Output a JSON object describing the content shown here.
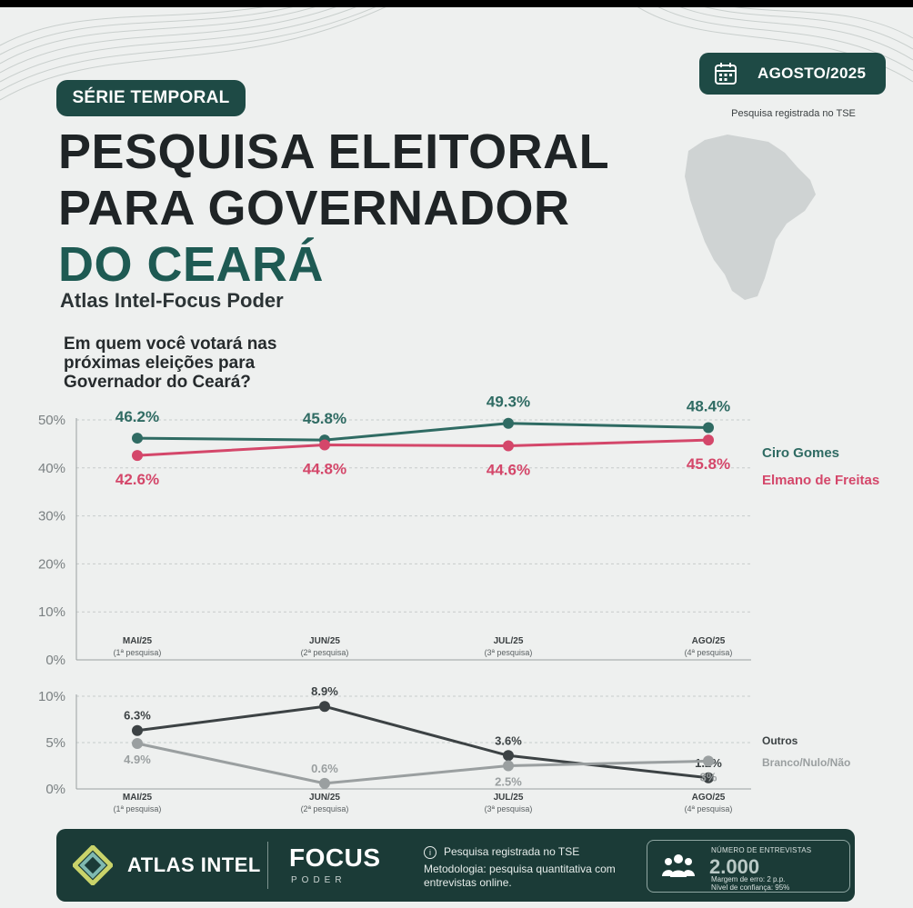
{
  "header": {
    "tag": "SÉRIE TEMPORAL",
    "title_lines": [
      "PESQUISA ELEITORAL",
      "PARA GOVERNADOR",
      "DO CEARÁ"
    ],
    "subtitle": "Atlas Intel-Focus Poder",
    "question": "Em quem você votará nas próximas eleições para Governador do Ceará?",
    "date_label": "AGOSTO/2025",
    "registration_note": "Pesquisa registrada no TSE"
  },
  "colors": {
    "ciro": "#2f6b63",
    "elmano": "#d4476a",
    "outros": "#3c4244",
    "branco": "#9a9fa0",
    "brand_dark": "#1e4a45"
  },
  "chart_data": [
    {
      "type": "line",
      "categories": [
        "MAI/25",
        "JUN/25",
        "JUL/25",
        "AGO/25"
      ],
      "category_sublabels": [
        "(1ª pesquisa)",
        "(2ª pesquisa)",
        "(3ª pesquisa)",
        "(4ª pesquisa)"
      ],
      "ylim": [
        0,
        50
      ],
      "yticks": [
        0,
        10,
        20,
        30,
        40,
        50
      ],
      "ytick_labels": [
        "0%",
        "10%",
        "20%",
        "30%",
        "40%",
        "50%"
      ],
      "grid": true,
      "series": [
        {
          "name": "Ciro Gomes",
          "values": [
            46.2,
            45.8,
            49.3,
            48.4
          ],
          "labels": [
            "46.2%",
            "45.8%",
            "49.3%",
            "48.4%"
          ]
        },
        {
          "name": "Elmano de Freitas",
          "values": [
            42.6,
            44.8,
            44.6,
            45.8
          ],
          "labels": [
            "42.6%",
            "44.8%",
            "44.6%",
            "45.8%"
          ]
        }
      ],
      "legend_position": "right"
    },
    {
      "type": "line",
      "categories": [
        "MAI/25",
        "JUN/25",
        "JUL/25",
        "AGO/25"
      ],
      "category_sublabels": [
        "(1ª pesquisa)",
        "(2ª pesquisa)",
        "(3ª pesquisa)",
        "(4ª pesquisa)"
      ],
      "ylim": [
        0,
        10
      ],
      "yticks": [
        0,
        5,
        10
      ],
      "ytick_labels": [
        "0%",
        "5%",
        "10%"
      ],
      "grid": true,
      "series": [
        {
          "name": "Outros",
          "values": [
            6.3,
            8.9,
            3.6,
            1.2
          ],
          "labels": [
            "6.3%",
            "8.9%",
            "3.6%",
            "1.2%"
          ]
        },
        {
          "name": "Branco/Nulo/Não",
          "values": [
            4.9,
            0.6,
            2.5,
            3
          ],
          "labels": [
            "4.9%",
            "0.6%",
            "2.5%",
            "3%"
          ]
        }
      ],
      "legend_position": "right"
    }
  ],
  "footer": {
    "brand1": "ATLAS INTEL",
    "brand2": "FOCUS",
    "brand2_sub": "PODER",
    "info_title": "Pesquisa registrada no TSE",
    "info_method": "Metodologia: pesquisa quantitativa com entrevistas online.",
    "sample_label": "NÚMERO DE ENTREVISTAS",
    "sample_value": "2.000",
    "margin": "Margem de erro: 2 p.p.",
    "confidence": "Nível de confiança: 95%"
  }
}
